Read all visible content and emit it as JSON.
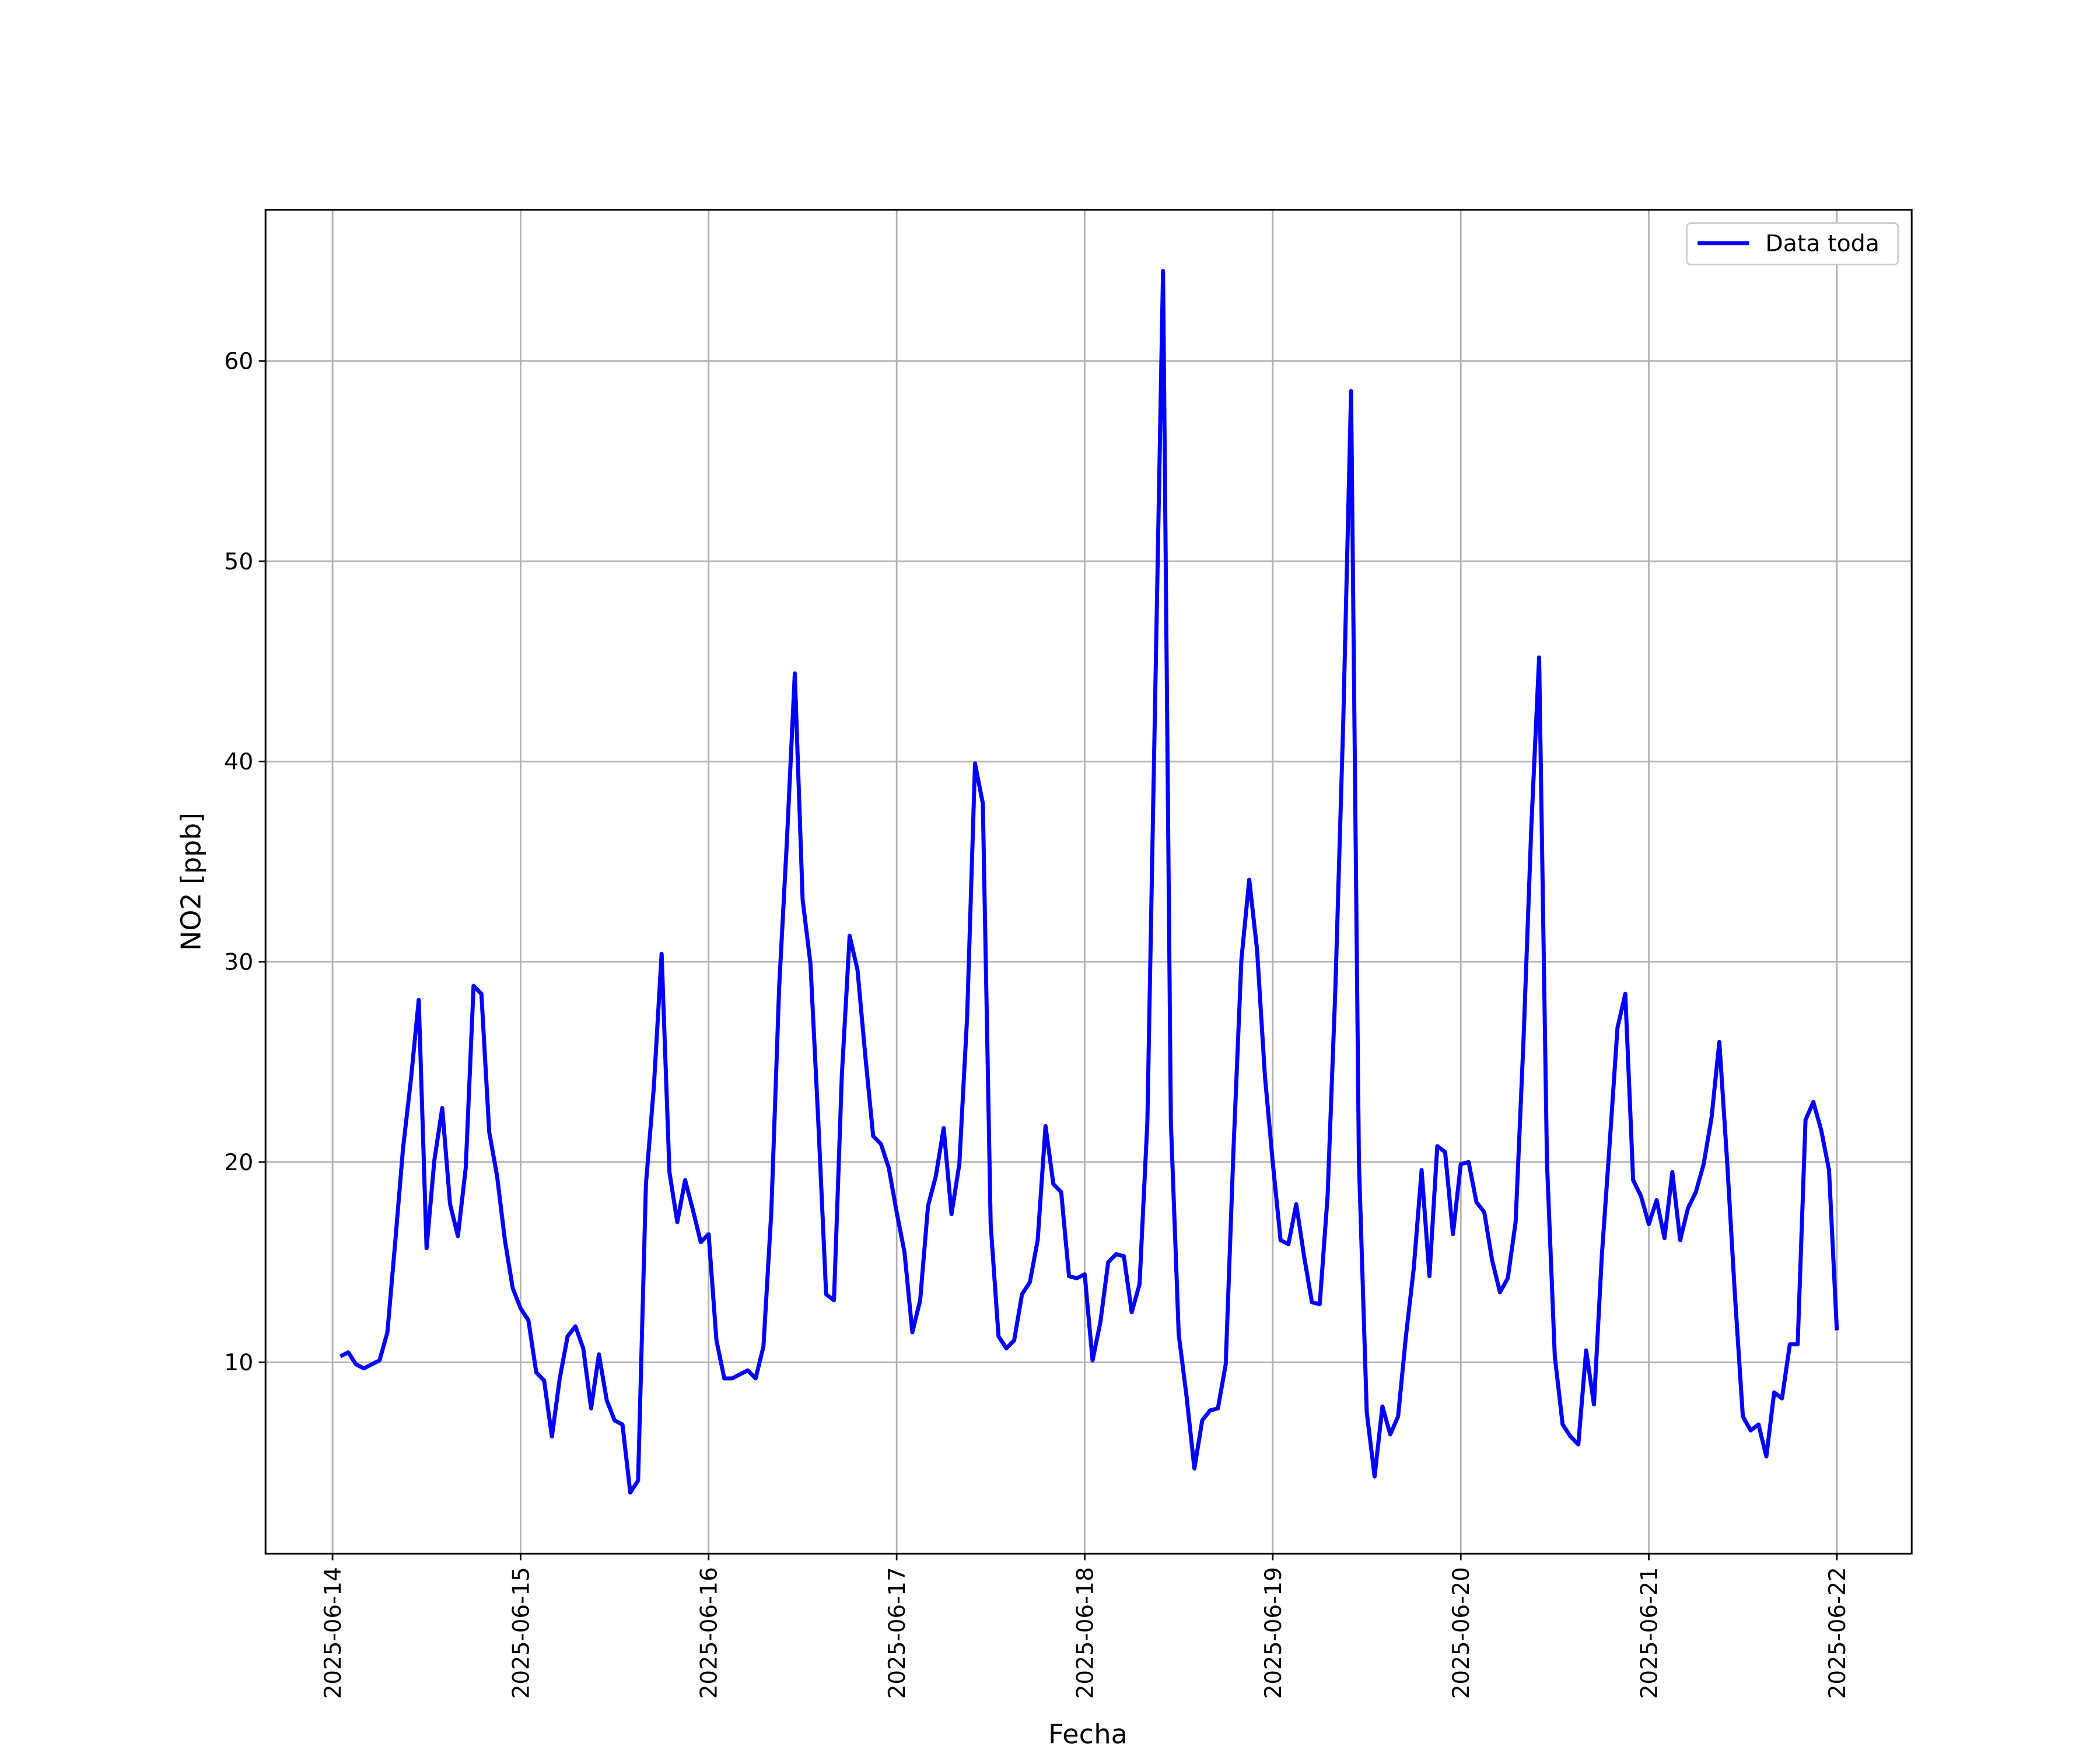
{
  "chart_data": {
    "type": "line",
    "ylabel": "NO2 [ppb]",
    "xlabel": "Fecha",
    "legend": "upper right",
    "grid": true,
    "xlim": [
      "2025-06-13T15:27",
      "2025-06-22T09:33"
    ],
    "xticks": [
      "2025-06-14",
      "2025-06-15",
      "2025-06-16",
      "2025-06-17",
      "2025-06-18",
      "2025-06-19",
      "2025-06-20",
      "2025-06-21",
      "2025-06-22"
    ],
    "ylim": [
      0.45,
      67.55
    ],
    "yticks": [
      10,
      20,
      30,
      40,
      50,
      60
    ],
    "x": [
      "2025-06-14T01:00",
      "2025-06-14T02:00",
      "2025-06-14T03:00",
      "2025-06-14T04:00",
      "2025-06-14T05:00",
      "2025-06-14T06:00",
      "2025-06-14T07:00",
      "2025-06-14T08:00",
      "2025-06-14T09:00",
      "2025-06-14T10:00",
      "2025-06-14T11:00",
      "2025-06-14T12:00",
      "2025-06-14T13:00",
      "2025-06-14T14:00",
      "2025-06-14T15:00",
      "2025-06-14T16:00",
      "2025-06-14T17:00",
      "2025-06-14T18:00",
      "2025-06-14T19:00",
      "2025-06-14T20:00",
      "2025-06-14T21:00",
      "2025-06-14T22:00",
      "2025-06-14T23:00",
      "2025-06-15T00:00",
      "2025-06-15T01:00",
      "2025-06-15T02:00",
      "2025-06-15T03:00",
      "2025-06-15T04:00",
      "2025-06-15T05:00",
      "2025-06-15T06:00",
      "2025-06-15T07:00",
      "2025-06-15T08:00",
      "2025-06-15T09:00",
      "2025-06-15T10:00",
      "2025-06-15T11:00",
      "2025-06-15T12:00",
      "2025-06-15T13:00",
      "2025-06-15T14:00",
      "2025-06-15T15:00",
      "2025-06-15T16:00",
      "2025-06-15T17:00",
      "2025-06-15T18:00",
      "2025-06-15T19:00",
      "2025-06-15T20:00",
      "2025-06-15T21:00",
      "2025-06-15T22:00",
      "2025-06-15T23:00",
      "2025-06-16T00:00",
      "2025-06-16T01:00",
      "2025-06-16T02:00",
      "2025-06-16T03:00",
      "2025-06-16T04:00",
      "2025-06-16T05:00",
      "2025-06-16T06:00",
      "2025-06-16T07:00",
      "2025-06-16T08:00",
      "2025-06-16T09:00",
      "2025-06-16T10:00",
      "2025-06-16T11:00",
      "2025-06-16T12:00",
      "2025-06-16T13:00",
      "2025-06-16T14:00",
      "2025-06-16T15:00",
      "2025-06-16T16:00",
      "2025-06-16T17:00",
      "2025-06-16T18:00",
      "2025-06-16T19:00",
      "2025-06-16T20:00",
      "2025-06-16T21:00",
      "2025-06-16T22:00",
      "2025-06-16T23:00",
      "2025-06-17T00:00",
      "2025-06-17T01:00",
      "2025-06-17T02:00",
      "2025-06-17T03:00",
      "2025-06-17T04:00",
      "2025-06-17T05:00",
      "2025-06-17T06:00",
      "2025-06-17T07:00",
      "2025-06-17T08:00",
      "2025-06-17T09:00",
      "2025-06-17T10:00",
      "2025-06-17T11:00",
      "2025-06-17T12:00",
      "2025-06-17T13:00",
      "2025-06-17T14:00",
      "2025-06-17T15:00",
      "2025-06-17T16:00",
      "2025-06-17T17:00",
      "2025-06-17T18:00",
      "2025-06-17T19:00",
      "2025-06-17T20:00",
      "2025-06-17T21:00",
      "2025-06-17T22:00",
      "2025-06-17T23:00",
      "2025-06-18T00:00",
      "2025-06-18T01:00",
      "2025-06-18T02:00",
      "2025-06-18T03:00",
      "2025-06-18T04:00",
      "2025-06-18T05:00",
      "2025-06-18T06:00",
      "2025-06-18T07:00",
      "2025-06-18T08:00",
      "2025-06-18T09:00",
      "2025-06-18T10:00",
      "2025-06-18T11:00",
      "2025-06-18T12:00",
      "2025-06-18T13:00",
      "2025-06-18T14:00",
      "2025-06-18T15:00",
      "2025-06-18T16:00",
      "2025-06-18T17:00",
      "2025-06-18T18:00",
      "2025-06-18T19:00",
      "2025-06-18T20:00",
      "2025-06-18T21:00",
      "2025-06-18T22:00",
      "2025-06-18T23:00",
      "2025-06-19T00:00",
      "2025-06-19T01:00",
      "2025-06-19T02:00",
      "2025-06-19T03:00",
      "2025-06-19T04:00",
      "2025-06-19T05:00",
      "2025-06-19T06:00",
      "2025-06-19T07:00",
      "2025-06-19T08:00",
      "2025-06-19T09:00",
      "2025-06-19T10:00",
      "2025-06-19T11:00",
      "2025-06-19T12:00",
      "2025-06-19T13:00",
      "2025-06-19T14:00",
      "2025-06-19T15:00",
      "2025-06-19T16:00",
      "2025-06-19T17:00",
      "2025-06-19T18:00",
      "2025-06-19T19:00",
      "2025-06-19T20:00",
      "2025-06-19T21:00",
      "2025-06-19T22:00",
      "2025-06-19T23:00",
      "2025-06-20T00:00",
      "2025-06-20T01:00",
      "2025-06-20T02:00",
      "2025-06-20T03:00",
      "2025-06-20T04:00",
      "2025-06-20T05:00",
      "2025-06-20T06:00",
      "2025-06-20T07:00",
      "2025-06-20T08:00",
      "2025-06-20T09:00",
      "2025-06-20T10:00",
      "2025-06-20T11:00",
      "2025-06-20T12:00",
      "2025-06-20T13:00",
      "2025-06-20T14:00",
      "2025-06-20T15:00",
      "2025-06-20T16:00",
      "2025-06-20T17:00",
      "2025-06-20T18:00",
      "2025-06-20T19:00",
      "2025-06-20T20:00",
      "2025-06-20T21:00",
      "2025-06-20T22:00",
      "2025-06-20T23:00",
      "2025-06-21T00:00",
      "2025-06-21T01:00",
      "2025-06-21T02:00",
      "2025-06-21T03:00",
      "2025-06-21T04:00",
      "2025-06-21T05:00",
      "2025-06-21T06:00",
      "2025-06-21T07:00",
      "2025-06-21T08:00",
      "2025-06-21T09:00",
      "2025-06-21T10:00",
      "2025-06-21T11:00",
      "2025-06-21T12:00",
      "2025-06-21T13:00",
      "2025-06-21T14:00",
      "2025-06-21T15:00",
      "2025-06-21T16:00",
      "2025-06-21T17:00",
      "2025-06-21T18:00",
      "2025-06-21T19:00",
      "2025-06-21T20:00",
      "2025-06-21T21:00",
      "2025-06-21T22:00",
      "2025-06-21T23:00",
      "2025-06-22T00:00"
    ],
    "series": [
      {
        "name": "Data toda",
        "color": "#0000ff",
        "values": [
          10.3,
          10.5,
          9.9,
          9.7,
          9.9,
          10.1,
          11.5,
          16.0,
          20.7,
          24.1,
          28.1,
          15.7,
          20.1,
          22.7,
          17.9,
          16.3,
          19.7,
          28.8,
          28.4,
          21.5,
          19.3,
          16.1,
          13.7,
          12.7,
          12.1,
          9.5,
          9.1,
          6.3,
          9.2,
          11.3,
          11.8,
          10.7,
          7.7,
          10.4,
          8.1,
          7.1,
          6.9,
          3.5,
          4.1,
          18.9,
          23.7,
          30.4,
          19.5,
          17.0,
          19.1,
          17.6,
          16.0,
          16.4,
          11.1,
          9.2,
          9.2,
          9.4,
          9.6,
          9.2,
          10.8,
          17.5,
          28.7,
          36.1,
          44.4,
          33.1,
          29.9,
          22.0,
          13.4,
          13.1,
          24.3,
          31.3,
          29.6,
          25.3,
          21.3,
          20.9,
          19.7,
          17.5,
          15.5,
          11.5,
          13.1,
          17.8,
          19.3,
          21.7,
          17.4,
          19.9,
          27.3,
          39.9,
          37.9,
          16.9,
          11.3,
          10.7,
          11.1,
          13.4,
          14.0,
          16.1,
          21.8,
          18.9,
          18.5,
          14.3,
          14.2,
          14.4,
          10.1,
          12.0,
          15.0,
          15.4,
          15.3,
          12.5,
          13.9,
          22.0,
          43.3,
          64.5,
          22.0,
          11.4,
          8.3,
          4.7,
          7.1,
          7.6,
          7.7,
          9.9,
          20.7,
          30.1,
          34.1,
          30.6,
          24.3,
          20.0,
          16.1,
          15.9,
          17.9,
          15.3,
          13.0,
          12.9,
          18.3,
          28.7,
          42.0,
          58.5,
          20.0,
          7.5,
          4.3,
          7.8,
          6.4,
          7.3,
          11.3,
          14.7,
          19.6,
          14.3,
          20.8,
          20.5,
          16.4,
          19.9,
          20.0,
          18.0,
          17.5,
          15.1,
          13.5,
          14.2,
          17.0,
          26.0,
          36.7,
          45.2,
          20.0,
          10.3,
          6.9,
          6.3,
          5.9,
          10.6,
          7.9,
          15.3,
          20.9,
          26.7,
          28.4,
          19.1,
          18.3,
          16.9,
          18.1,
          16.2,
          19.5,
          16.1,
          17.7,
          18.5,
          19.9,
          22.2,
          26.0,
          20.0,
          13.3,
          7.3,
          6.6,
          6.9,
          5.3,
          8.5,
          8.2,
          10.9,
          10.9,
          22.1,
          23.0,
          21.6,
          19.6,
          11.6
        ]
      }
    ]
  }
}
